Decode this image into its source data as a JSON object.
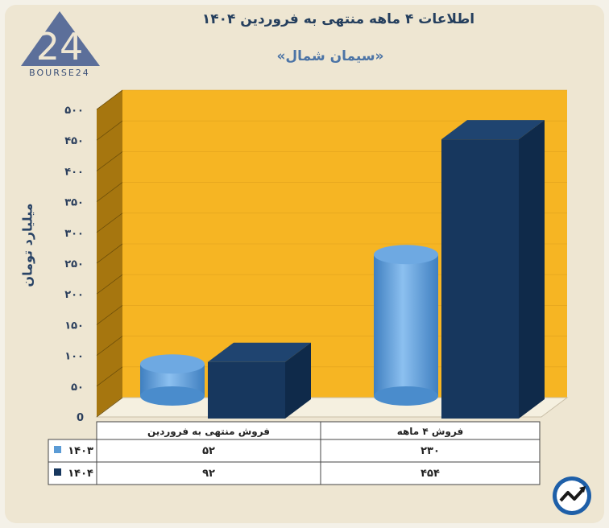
{
  "header": {
    "title": "اطلاعات ۴ ماهه منتهی به فروردین ۱۴۰۴",
    "subtitle": "«سیمان شمال»"
  },
  "brand": {
    "logo_text": "BOURSE24",
    "logo_digits": "24",
    "corner_icon": "trend-arrow-icon"
  },
  "chart_data": {
    "type": "bar",
    "title": "اطلاعات ۴ ماهه منتهی به فروردین ۱۴۰۴",
    "subtitle": "«سیمان شمال»",
    "ylabel": "میلیارد تومان",
    "ylim": [
      0,
      500
    ],
    "yticks": [
      0,
      50,
      100,
      150,
      200,
      250,
      300,
      350,
      400,
      450,
      500
    ],
    "ytick_labels": [
      "0",
      "۵۰",
      "۱۰۰",
      "۱۵۰",
      "۲۰۰",
      "۲۵۰",
      "۳۰۰",
      "۳۵۰",
      "۴۰۰",
      "۴۵۰",
      "۵۰۰"
    ],
    "categories": [
      "فروش منتهی به  فروردین",
      "فروش ۴  ماهه"
    ],
    "series": [
      {
        "name": "۱۴۰۳",
        "shape": "cylinder",
        "color": "#5b9bd5",
        "values": [
          52,
          230
        ],
        "labels": [
          "۵۲",
          "۲۳۰"
        ]
      },
      {
        "name": "۱۴۰۴",
        "shape": "box",
        "color": "#17375e",
        "values": [
          92,
          454
        ],
        "labels": [
          "۹۲",
          "۴۵۴"
        ]
      }
    ],
    "background_color": "#f6b523",
    "grid": true,
    "data_table": true
  }
}
